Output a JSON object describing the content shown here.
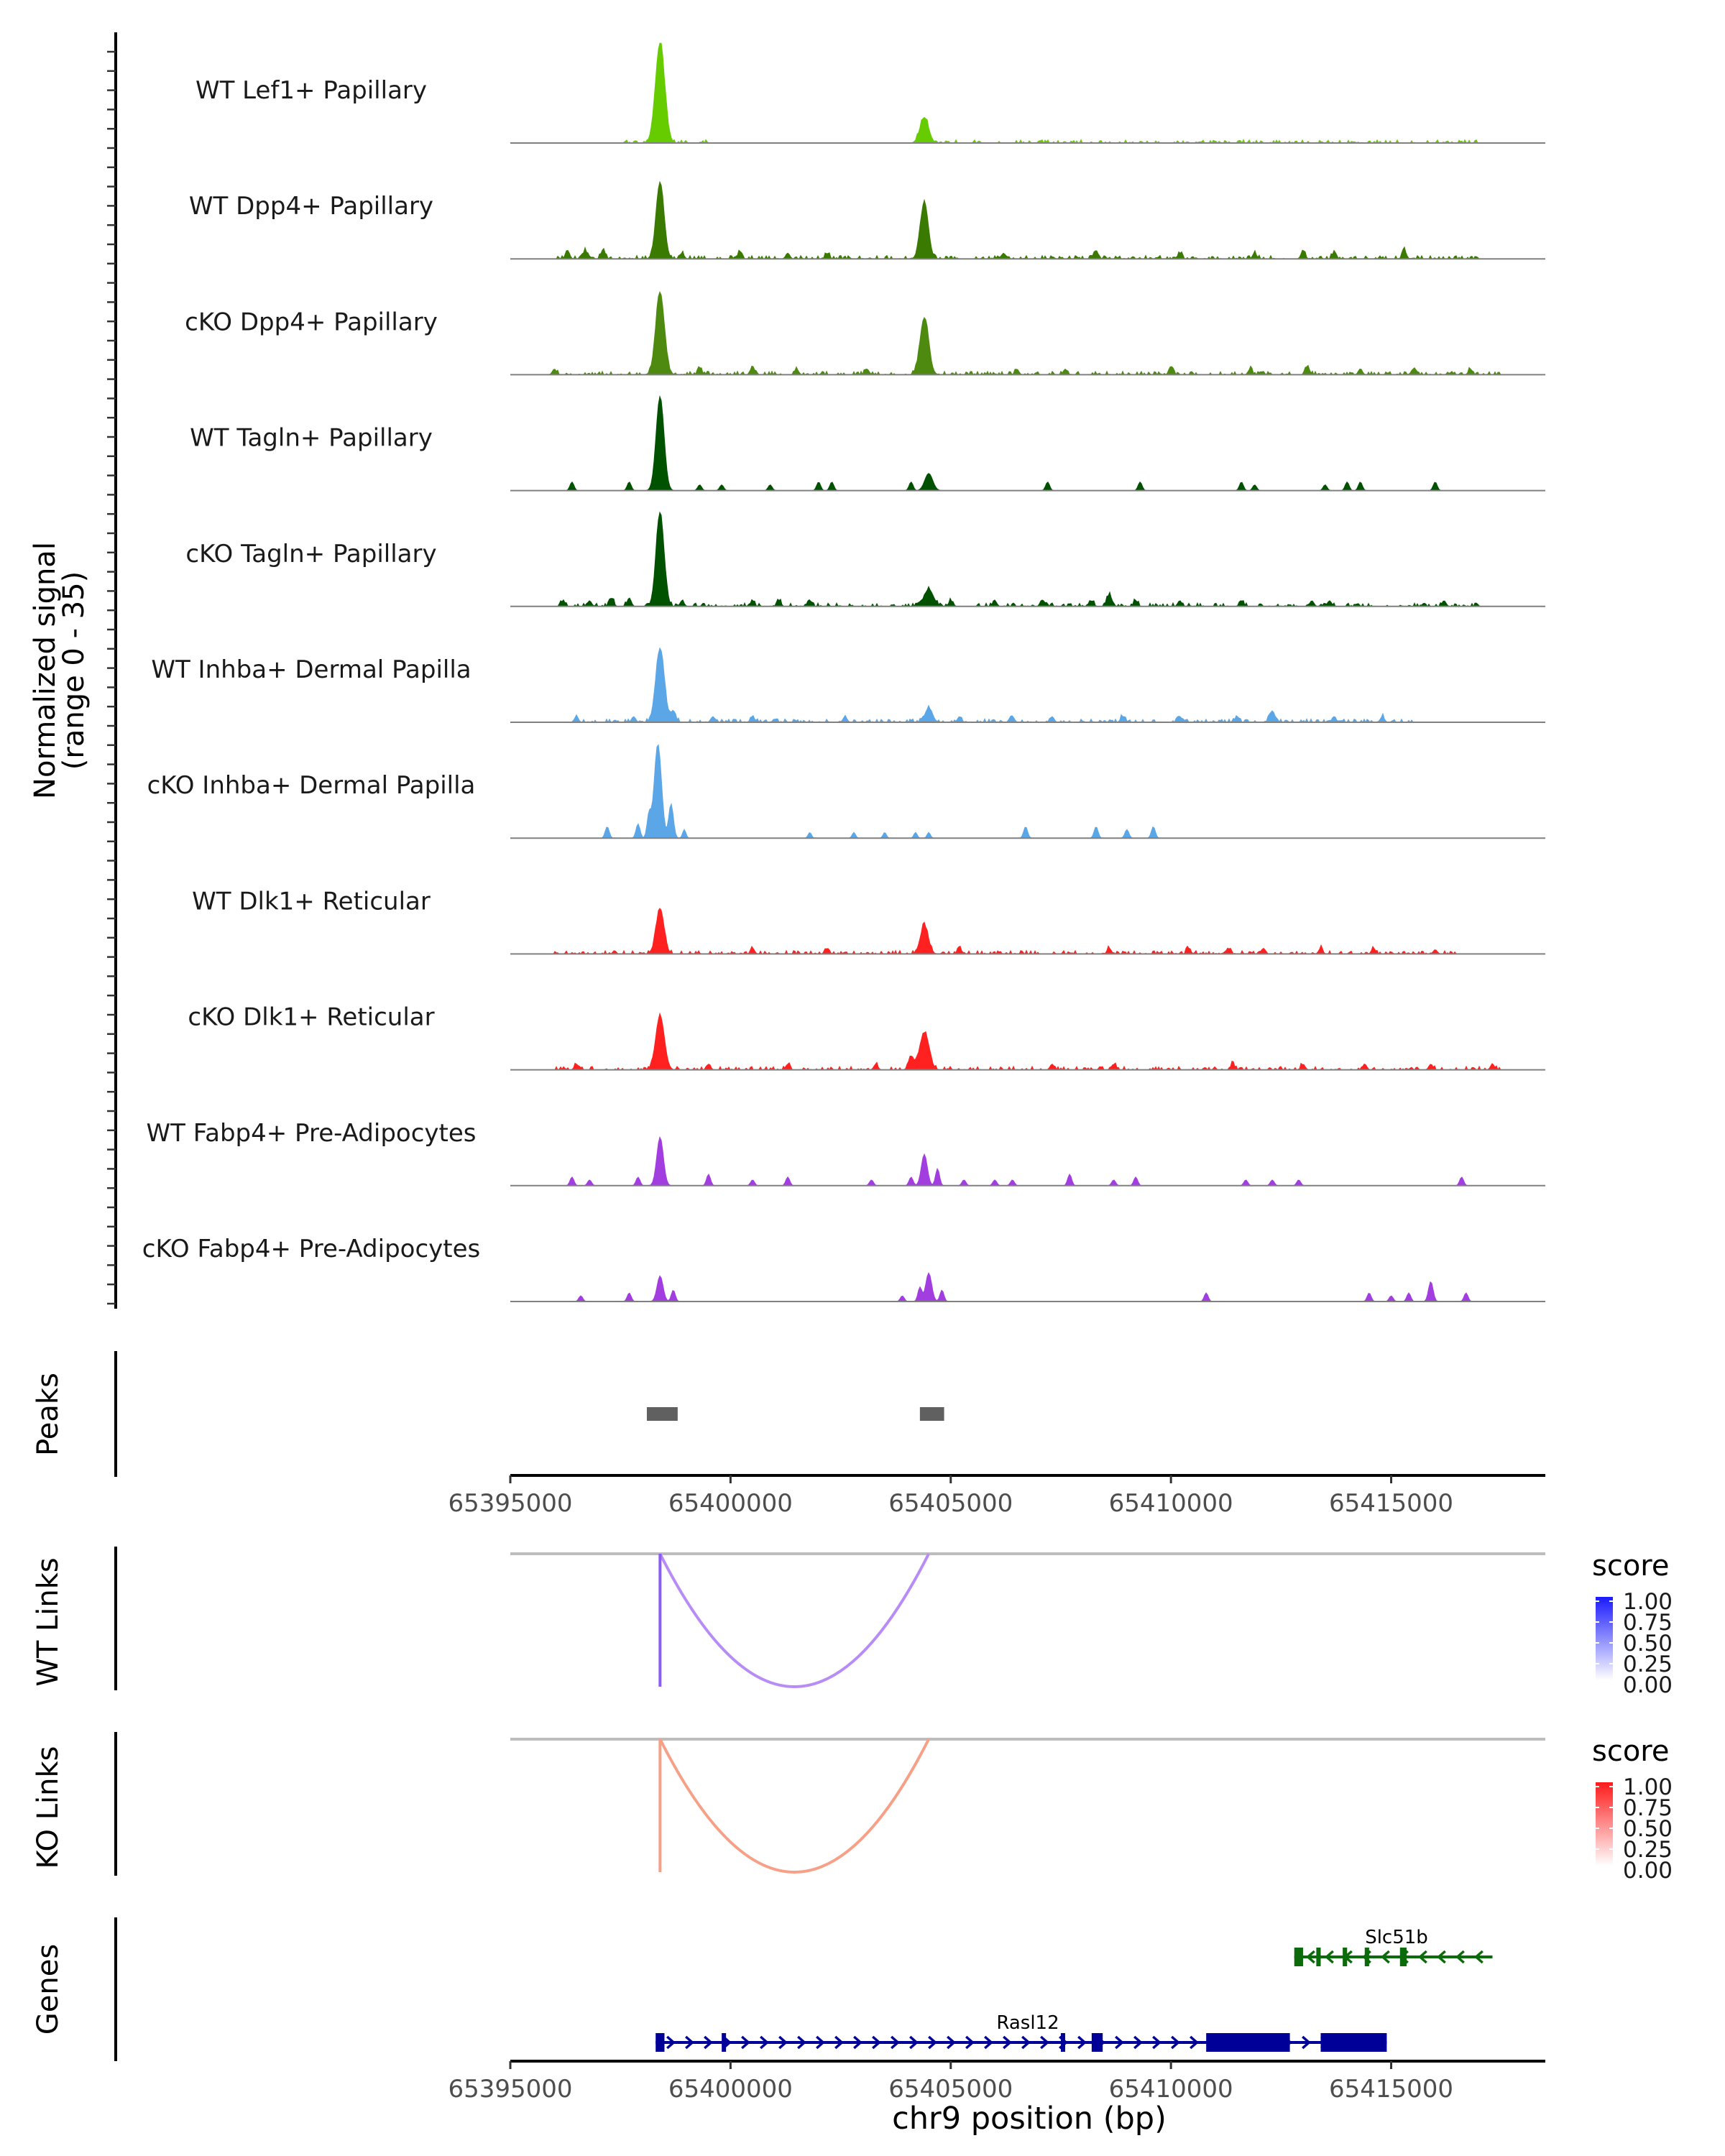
{
  "chart_data": {
    "type": "area",
    "region": {
      "chrom": "chr9",
      "start": 65395000,
      "end": 65418500
    },
    "signal_axis_label_line1": "Normalized signal",
    "signal_axis_label_line2": "(range 0 - 35)",
    "signal_range": [
      0,
      35
    ],
    "xlabel": "chr9 position (bp)",
    "x_ticks": [
      65395000,
      65400000,
      65405000,
      65410000,
      65415000
    ],
    "x_tick_labels": [
      "65395000",
      "65400000",
      "65405000",
      "65410000",
      "65415000"
    ],
    "tracks": [
      {
        "name": "WT Lef1+ Papillary",
        "color": "#66cc00",
        "peaks": [
          [
            65398400,
            35,
            140
          ],
          [
            65404400,
            9,
            130
          ]
        ],
        "noise": [
          [
            65397500,
            65399500
          ],
          [
            65404000,
            65405200
          ],
          [
            65405500,
            65417000
          ]
        ]
      },
      {
        "name": "WT Dpp4+ Papillary",
        "color": "#3a7a00",
        "peaks": [
          [
            65398400,
            27,
            120
          ],
          [
            65404400,
            20,
            120
          ],
          [
            65396300,
            3,
            60
          ],
          [
            65396700,
            3,
            60
          ],
          [
            65397100,
            3,
            60
          ],
          [
            65398900,
            2,
            60
          ],
          [
            65400200,
            2,
            60
          ],
          [
            65401300,
            2,
            60
          ],
          [
            65402200,
            2,
            60
          ],
          [
            65406200,
            2,
            60
          ],
          [
            65408300,
            3,
            60
          ],
          [
            65410200,
            2,
            60
          ],
          [
            65411900,
            2,
            60
          ],
          [
            65413000,
            3,
            60
          ],
          [
            65413700,
            2,
            60
          ],
          [
            65415300,
            3,
            60
          ]
        ],
        "noise": [
          [
            65396000,
            65417000
          ]
        ]
      },
      {
        "name": "cKO Dpp4+ Papillary",
        "color": "#4d8a0f",
        "peaks": [
          [
            65398400,
            29,
            130
          ],
          [
            65404400,
            20,
            130
          ],
          [
            65396000,
            2,
            60
          ],
          [
            65399300,
            2,
            60
          ],
          [
            65400500,
            3,
            60
          ],
          [
            65401500,
            2,
            60
          ],
          [
            65403100,
            2,
            60
          ],
          [
            65406500,
            2,
            60
          ],
          [
            65407600,
            2,
            60
          ],
          [
            65410000,
            3,
            60
          ],
          [
            65411800,
            2,
            60
          ],
          [
            65413100,
            3,
            60
          ],
          [
            65414300,
            2,
            60
          ],
          [
            65415500,
            2,
            60
          ],
          [
            65416800,
            2,
            60
          ]
        ],
        "noise": [
          [
            65396000,
            65417500
          ]
        ]
      },
      {
        "name": "WT Tagln+ Papillary",
        "color": "#005200",
        "peaks": [
          [
            65398400,
            33,
            120
          ],
          [
            65404500,
            6,
            120
          ],
          [
            65404100,
            3,
            60
          ],
          [
            65396400,
            3,
            60
          ],
          [
            65397700,
            3,
            60
          ],
          [
            65399300,
            2,
            60
          ],
          [
            65399800,
            2,
            60
          ],
          [
            65400900,
            2,
            60
          ],
          [
            65402000,
            3,
            60
          ],
          [
            65402300,
            3,
            60
          ],
          [
            65407200,
            3,
            60
          ],
          [
            65409300,
            3,
            60
          ],
          [
            65411600,
            3,
            60
          ],
          [
            65411900,
            2,
            60
          ],
          [
            65413500,
            2,
            60
          ],
          [
            65414000,
            3,
            60
          ],
          [
            65414300,
            3,
            60
          ],
          [
            65416000,
            3,
            60
          ]
        ],
        "noise": []
      },
      {
        "name": "cKO Tagln+ Papillary",
        "color": "#005200",
        "peaks": [
          [
            65398400,
            33,
            120
          ],
          [
            65404500,
            6,
            140
          ],
          [
            65396200,
            2,
            60
          ],
          [
            65396800,
            2,
            60
          ],
          [
            65397300,
            3,
            60
          ],
          [
            65397700,
            3,
            60
          ],
          [
            65398900,
            2,
            60
          ],
          [
            65400500,
            2,
            60
          ],
          [
            65401100,
            2,
            60
          ],
          [
            65401800,
            2,
            60
          ],
          [
            65405000,
            2,
            60
          ],
          [
            65406000,
            2,
            60
          ],
          [
            65407100,
            2,
            60
          ],
          [
            65408200,
            2,
            60
          ],
          [
            65408600,
            4,
            80
          ],
          [
            65409200,
            2,
            60
          ],
          [
            65410200,
            2,
            60
          ],
          [
            65411600,
            2,
            60
          ],
          [
            65413200,
            2,
            60
          ],
          [
            65413600,
            2,
            60
          ],
          [
            65416200,
            2,
            60
          ]
        ],
        "noise": [
          [
            65396000,
            65417000
          ]
        ]
      },
      {
        "name": "WT Inhba+ Dermal Papilla",
        "color": "#5aa6e6",
        "peaks": [
          [
            65398400,
            26,
            130
          ],
          [
            65398700,
            4,
            70
          ],
          [
            65404500,
            5,
            110
          ],
          [
            65396500,
            2,
            60
          ],
          [
            65397800,
            2,
            60
          ],
          [
            65399600,
            2,
            60
          ],
          [
            65400500,
            2,
            60
          ],
          [
            65402600,
            2,
            60
          ],
          [
            65405200,
            2,
            60
          ],
          [
            65406400,
            2,
            60
          ],
          [
            65407300,
            2,
            60
          ],
          [
            65408900,
            2,
            60
          ],
          [
            65410200,
            2,
            60
          ],
          [
            65411500,
            2,
            60
          ],
          [
            65412300,
            4,
            80
          ],
          [
            65413700,
            2,
            60
          ],
          [
            65414800,
            2,
            60
          ]
        ],
        "noise": [
          [
            65396500,
            65415500
          ]
        ]
      },
      {
        "name": "cKO Inhba+ Dermal Papilla",
        "color": "#5aa6e6",
        "peaks": [
          [
            65398350,
            33,
            110
          ],
          [
            65398150,
            8,
            60
          ],
          [
            65398650,
            12,
            70
          ],
          [
            65398950,
            3,
            50
          ],
          [
            65397200,
            4,
            60
          ],
          [
            65397900,
            5,
            60
          ],
          [
            65401800,
            2,
            50
          ],
          [
            65402800,
            2,
            50
          ],
          [
            65403500,
            2,
            50
          ],
          [
            65404200,
            2,
            50
          ],
          [
            65404500,
            2,
            50
          ],
          [
            65406700,
            4,
            60
          ],
          [
            65408300,
            4,
            60
          ],
          [
            65409000,
            3,
            60
          ],
          [
            65409600,
            4,
            60
          ]
        ],
        "noise": []
      },
      {
        "name": "WT Dlk1+ Reticular",
        "color": "#ff2020",
        "peaks": [
          [
            65398400,
            16,
            120
          ],
          [
            65404400,
            10,
            120
          ],
          [
            65400500,
            2,
            60
          ],
          [
            65402200,
            2,
            60
          ],
          [
            65405200,
            2,
            60
          ],
          [
            65408600,
            2,
            60
          ],
          [
            65410400,
            2,
            60
          ],
          [
            65411300,
            2,
            60
          ],
          [
            65412100,
            2,
            60
          ],
          [
            65413400,
            2,
            60
          ],
          [
            65414600,
            2,
            60
          ],
          [
            65416000,
            1.5,
            60
          ]
        ],
        "noise": [
          [
            65396000,
            65416500
          ]
        ]
      },
      {
        "name": "cKO Dlk1+ Reticular",
        "color": "#ff2020",
        "peaks": [
          [
            65398400,
            19,
            130
          ],
          [
            65404400,
            13,
            140
          ],
          [
            65404100,
            4,
            80
          ],
          [
            65396500,
            2,
            60
          ],
          [
            65399500,
            2,
            60
          ],
          [
            65401300,
            2,
            60
          ],
          [
            65403300,
            2,
            60
          ],
          [
            65407300,
            2,
            60
          ],
          [
            65408700,
            2,
            60
          ],
          [
            65411400,
            2,
            60
          ],
          [
            65413000,
            2,
            60
          ],
          [
            65414400,
            2,
            60
          ],
          [
            65415900,
            2,
            60
          ],
          [
            65417300,
            2,
            60
          ]
        ],
        "noise": [
          [
            65396000,
            65417500
          ]
        ]
      },
      {
        "name": "WT Fabp4+ Pre-Adipocytes",
        "color": "#a23de0",
        "peaks": [
          [
            65398400,
            17,
            100
          ],
          [
            65396400,
            3,
            60
          ],
          [
            65396800,
            2,
            60
          ],
          [
            65397900,
            3,
            60
          ],
          [
            65399500,
            4,
            60
          ],
          [
            65400500,
            2,
            60
          ],
          [
            65401300,
            3,
            60
          ],
          [
            65403200,
            2,
            60
          ],
          [
            65404100,
            3,
            60
          ],
          [
            65404400,
            11,
            90
          ],
          [
            65404700,
            6,
            60
          ],
          [
            65405300,
            2,
            60
          ],
          [
            65406000,
            2,
            60
          ],
          [
            65406400,
            2,
            60
          ],
          [
            65407700,
            4,
            60
          ],
          [
            65408700,
            2,
            60
          ],
          [
            65409200,
            3,
            60
          ],
          [
            65411700,
            2,
            60
          ],
          [
            65412300,
            2,
            60
          ],
          [
            65412900,
            2,
            60
          ],
          [
            65416600,
            3,
            60
          ]
        ],
        "noise": []
      },
      {
        "name": "cKO Fabp4+ Pre-Adipocytes",
        "color": "#a23de0",
        "peaks": [
          [
            65398400,
            9,
            90
          ],
          [
            65398700,
            4,
            60
          ],
          [
            65396600,
            2,
            60
          ],
          [
            65397700,
            3,
            60
          ],
          [
            65403900,
            2,
            60
          ],
          [
            65404300,
            5,
            60
          ],
          [
            65404500,
            10,
            90
          ],
          [
            65404800,
            4,
            60
          ],
          [
            65410800,
            3,
            60
          ],
          [
            65414500,
            3,
            60
          ],
          [
            65415000,
            2,
            60
          ],
          [
            65415400,
            3,
            60
          ],
          [
            65415900,
            7,
            70
          ],
          [
            65416700,
            3,
            60
          ]
        ],
        "noise": []
      }
    ],
    "peaks_track": {
      "label": "Peaks",
      "color": "#606060",
      "regions": [
        [
          65398100,
          65398800
        ],
        [
          65404300,
          65404850
        ]
      ]
    },
    "link_tracks": [
      {
        "label": "WT Links",
        "legend_title": "score",
        "color_low": "#ffffff",
        "color_high": "#1a1aff",
        "arc_color": "#b88cf6",
        "stem_color": "#8b5cf6",
        "links": [
          {
            "start": 65398400,
            "end": 65404500,
            "score": 0.6
          }
        ],
        "legend_ticks": [
          "1.00",
          "0.75",
          "0.50",
          "0.25",
          "0.00"
        ]
      },
      {
        "label": "KO Links",
        "legend_title": "score",
        "color_low": "#ffffff",
        "color_high": "#ff1a1a",
        "arc_color": "#f7a088",
        "stem_color": "#f7a088",
        "links": [
          {
            "start": 65398400,
            "end": 65404500,
            "score": 0.5
          }
        ],
        "legend_ticks": [
          "1.00",
          "0.75",
          "0.50",
          "0.25",
          "0.00"
        ]
      }
    ],
    "genes_track": {
      "label": "Genes",
      "genes": [
        {
          "name": "Slc51b",
          "strand": "-",
          "color": "#0b6b0b",
          "start": 65412800,
          "end": 65417300,
          "exons": [
            [
              65412800,
              65413000
            ],
            [
              65413300,
              65413400
            ],
            [
              65413900,
              65414000
            ],
            [
              65414400,
              65414500
            ],
            [
              65415200,
              65415350
            ]
          ]
        },
        {
          "name": "Rasl12",
          "strand": "+",
          "color": "#000099",
          "start": 65398300,
          "end": 65414900,
          "exons": [
            [
              65398300,
              65398500
            ],
            [
              65399800,
              65399850
            ],
            [
              65407500,
              65407550
            ],
            [
              65408200,
              65408450
            ],
            [
              65410800,
              65412700
            ],
            [
              65413400,
              65414900
            ]
          ]
        }
      ]
    }
  }
}
